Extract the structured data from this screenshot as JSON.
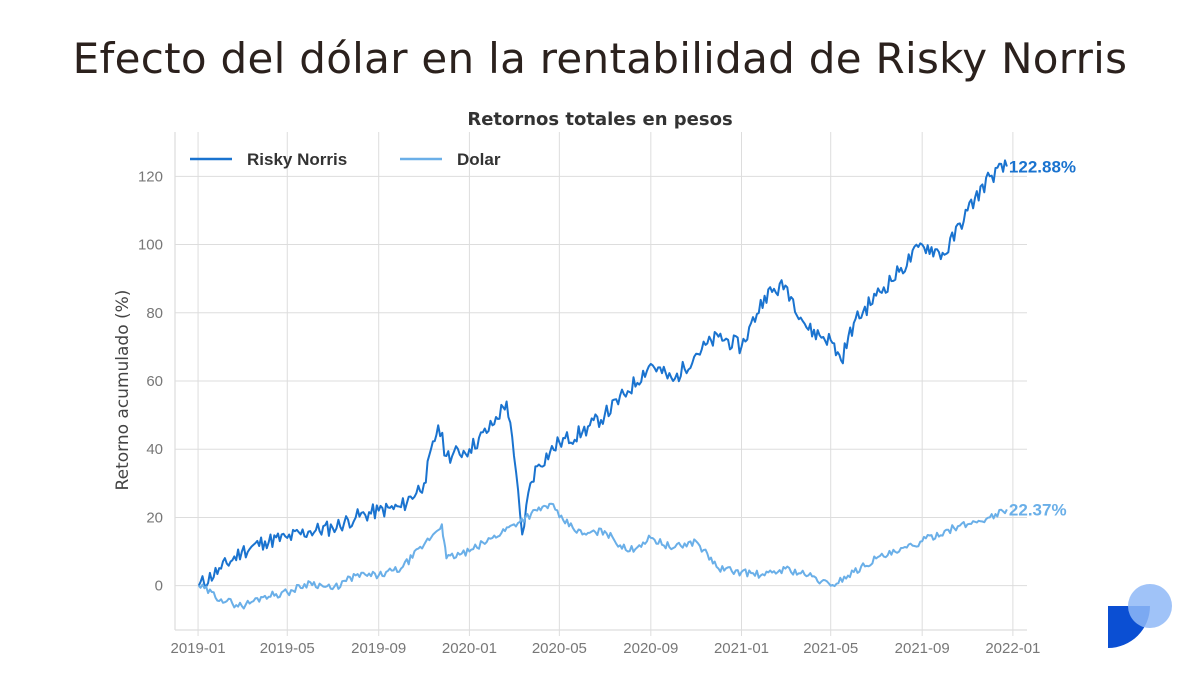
{
  "page": {
    "title": "Efecto del dólar en la rentabilidad de Risky Norris"
  },
  "colors": {
    "risky": "#1a73cf",
    "dolar": "#6aafe8",
    "grid": "#dddddd",
    "logo_dark": "#0b4fd3",
    "logo_light": "#8fb8f7"
  },
  "chart_data": {
    "type": "line",
    "title": "Retornos totales en pesos",
    "xlabel": "",
    "ylabel": "Retorno acumulado (%)",
    "ylim": [
      -13,
      133
    ],
    "yticks": [
      0,
      20,
      40,
      60,
      80,
      100,
      120
    ],
    "xlim": [
      "2018-12-01",
      "2022-01-20"
    ],
    "xticks": [
      "2019-01",
      "2019-05",
      "2019-09",
      "2020-01",
      "2020-05",
      "2020-09",
      "2021-01",
      "2021-05",
      "2021-09",
      "2022-01"
    ],
    "grid": true,
    "legend_position": "top-left",
    "series": [
      {
        "name": "Risky Norris",
        "color": "#1a73cf",
        "end_label": "122.88%",
        "x": [
          "2019-01-02",
          "2019-02-01",
          "2019-03-01",
          "2019-04-01",
          "2019-05-01",
          "2019-06-01",
          "2019-07-01",
          "2019-08-01",
          "2019-09-01",
          "2019-10-01",
          "2019-11-01",
          "2019-11-20",
          "2019-12-01",
          "2020-01-01",
          "2020-02-01",
          "2020-02-20",
          "2020-03-01",
          "2020-03-12",
          "2020-03-23",
          "2020-04-01",
          "2020-05-01",
          "2020-06-01",
          "2020-07-01",
          "2020-08-01",
          "2020-09-01",
          "2020-10-01",
          "2020-11-01",
          "2020-12-01",
          "2021-01-01",
          "2021-02-01",
          "2021-03-01",
          "2021-04-01",
          "2021-05-01",
          "2021-05-15",
          "2021-06-01",
          "2021-07-01",
          "2021-08-01",
          "2021-09-01",
          "2021-10-01",
          "2021-11-01",
          "2021-12-01",
          "2021-12-24"
        ],
        "values": [
          0,
          5,
          10,
          13,
          14,
          16,
          17,
          20,
          22,
          23,
          30,
          47,
          38,
          40,
          47,
          54,
          38,
          15,
          30,
          35,
          42,
          45,
          50,
          57,
          65,
          60,
          68,
          73,
          70,
          85,
          88,
          75,
          72,
          66,
          77,
          85,
          92,
          100,
          97,
          110,
          120,
          122.88
        ]
      },
      {
        "name": "Dolar",
        "color": "#6aafe8",
        "end_label": "22.37%",
        "x": [
          "2019-01-02",
          "2019-02-01",
          "2019-03-01",
          "2019-04-01",
          "2019-05-01",
          "2019-06-01",
          "2019-07-01",
          "2019-08-01",
          "2019-09-01",
          "2019-10-01",
          "2019-11-01",
          "2019-11-25",
          "2019-12-01",
          "2020-01-01",
          "2020-02-01",
          "2020-03-01",
          "2020-04-01",
          "2020-04-20",
          "2020-05-01",
          "2020-06-01",
          "2020-07-01",
          "2020-08-01",
          "2020-09-01",
          "2020-10-01",
          "2020-11-01",
          "2020-12-01",
          "2021-01-01",
          "2021-02-01",
          "2021-03-01",
          "2021-04-01",
          "2021-05-01",
          "2021-06-01",
          "2021-07-01",
          "2021-08-01",
          "2021-09-01",
          "2021-10-01",
          "2021-11-01",
          "2021-12-01",
          "2021-12-24"
        ],
        "values": [
          0,
          -4,
          -6,
          -3,
          -2,
          1,
          -1,
          3,
          3,
          5,
          12,
          18,
          8,
          10,
          14,
          18,
          22,
          24,
          20,
          15,
          16,
          10,
          14,
          11,
          13,
          5,
          4,
          3,
          5,
          3,
          0,
          4,
          8,
          10,
          13,
          16,
          18,
          20,
          22.37
        ]
      }
    ]
  }
}
